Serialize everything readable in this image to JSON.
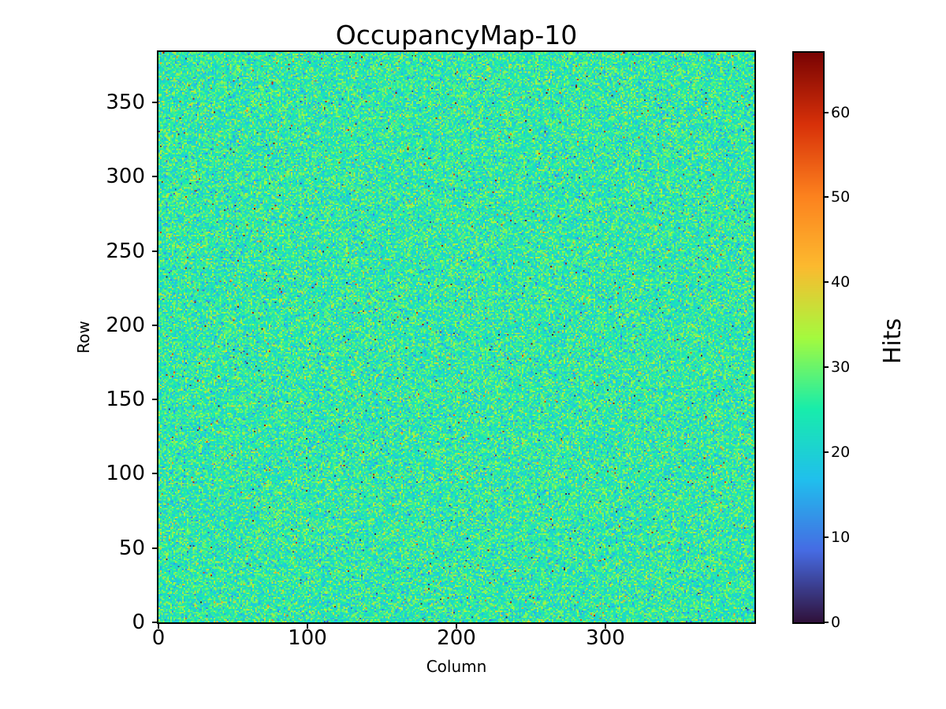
{
  "figure": {
    "background": "#ffffff",
    "text_color": "#000000",
    "spine_color": "#000000"
  },
  "chart_data": {
    "type": "heatmap",
    "title": "OccupancyMap-10",
    "xlabel": "Column",
    "ylabel": "Row",
    "colorbar_label": "Hits",
    "colormap": "turbo",
    "colormap_low_hex": "#30123b",
    "colormap_high_hex": "#7a0403",
    "x_ticks": [
      0,
      100,
      200,
      300
    ],
    "y_ticks": [
      0,
      50,
      100,
      150,
      200,
      250,
      300,
      350
    ],
    "colorbar_ticks": [
      0,
      10,
      20,
      30,
      40,
      50,
      60
    ],
    "x_range": [
      0,
      400
    ],
    "y_range": [
      0,
      384
    ],
    "value_range": [
      0,
      67
    ],
    "n_cols": 400,
    "n_rows": 384,
    "mean_hits": 25,
    "std_hits": 5.5,
    "outlier_fraction": 0.0075,
    "distribution": "poisson-like random occupancy",
    "grid": false,
    "legend_position": "colorbar-right",
    "seed": 10
  }
}
